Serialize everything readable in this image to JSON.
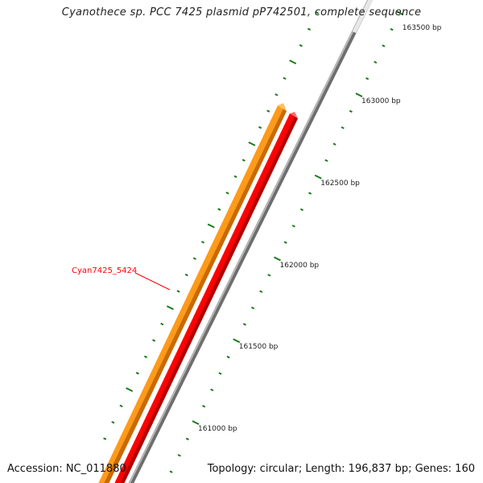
{
  "title": "Cyanothece sp. PCC 7425 plasmid pP742501, complete sequence",
  "accession": "Accession: NC_011880",
  "stats": "Topology: circular; Length: 196,837 bp; Genes: 160",
  "gene_label": "Cyan7425_5424",
  "colors": {
    "forward_gene": "#ff8c00",
    "reverse_gene": "#ff0000",
    "backbone": "#8a8a8a",
    "ticks": "#1a7a1a",
    "label": "#ff0000"
  },
  "ruler": {
    "labels": [
      "163500 bp",
      "163000 bp",
      "162500 bp",
      "162000 bp",
      "161500 bp",
      "161000 bp"
    ],
    "label_values": [
      163500,
      163000,
      162500,
      162000,
      161500,
      161000
    ],
    "minor_step_bp": 100,
    "major_step_bp": 500
  }
}
